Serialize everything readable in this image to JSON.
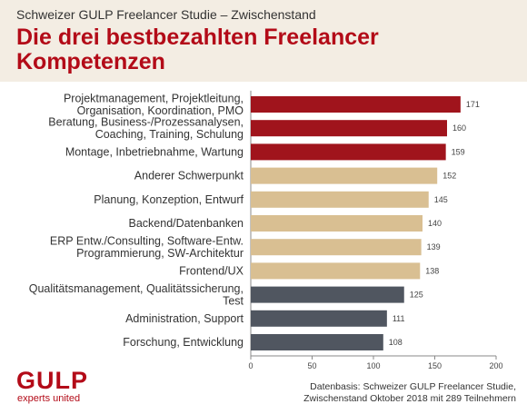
{
  "header": {
    "subtitle": "Schweizer GULP Freelancer Studie – Zwischenstand",
    "title": "Die drei bestbezahlten Freelancer Kompetenzen"
  },
  "colors": {
    "top": "#a0141c",
    "middle": "#d9bf92",
    "bottom": "#505660",
    "header_bg": "#f3ede3",
    "brand": "#b30b18"
  },
  "chart_data": {
    "type": "bar",
    "orientation": "horizontal",
    "categories": [
      [
        "Projektmanagement, Projektleitung,",
        "Organisation, Koordination, PMO"
      ],
      [
        "Beratung, Business-/Prozessanalysen,",
        "Coaching, Training, Schulung"
      ],
      [
        "Montage, Inbetriebnahme, Wartung"
      ],
      [
        "Anderer Schwerpunkt"
      ],
      [
        "Planung, Konzeption, Entwurf"
      ],
      [
        "Backend/Datenbanken"
      ],
      [
        "ERP Entw./Consulting, Software-Entw.",
        "Programmierung,  SW-Architektur"
      ],
      [
        "Frontend/UX"
      ],
      [
        "Qualitätsmanagement, Qualitätssicherung,",
        "Test"
      ],
      [
        "Administration, Support"
      ],
      [
        "Forschung, Entwicklung"
      ]
    ],
    "values": [
      171,
      160,
      159,
      152,
      145,
      140,
      139,
      138,
      125,
      111,
      108
    ],
    "groups": [
      "top",
      "top",
      "top",
      "middle",
      "middle",
      "middle",
      "middle",
      "middle",
      "bottom",
      "bottom",
      "bottom"
    ],
    "xlim": [
      0,
      200
    ],
    "xticks": [
      0,
      50,
      100,
      150,
      200
    ],
    "grid": false,
    "legend": "none"
  },
  "logo": {
    "name": "GULP",
    "tagline": "experts united"
  },
  "source": {
    "line1": "Datenbasis: Schweizer GULP Freelancer Studie,",
    "line2": "Zwischenstand Oktober 2018 mit 289 Teilnehmern"
  }
}
